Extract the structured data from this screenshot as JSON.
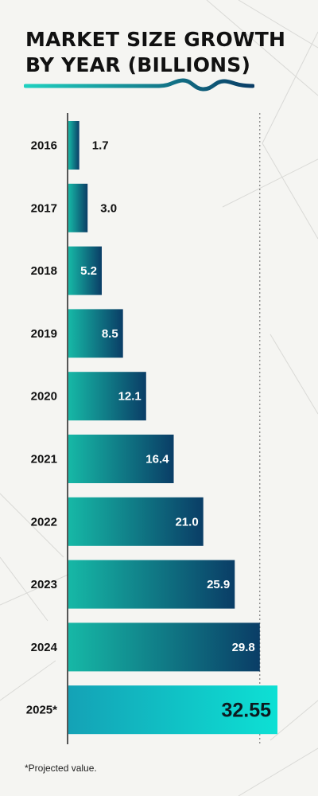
{
  "title": "MARKET SIZE GROWTH BY YEAR (BILLIONS)",
  "footnote": "*Projected value.",
  "colors": {
    "bar_start": "#16b8a6",
    "bar_end": "#0a3d66",
    "projected_start": "#14a2b6",
    "projected_end": "#0de0d4",
    "text": "#111111"
  },
  "chart_data": {
    "type": "bar",
    "orientation": "horizontal",
    "title": "MARKET SIZE GROWTH BY YEAR (BILLIONS)",
    "xlabel": "",
    "ylabel": "",
    "xlim": [
      0,
      32.55
    ],
    "grid": false,
    "categories": [
      "2016",
      "2017",
      "2018",
      "2019",
      "2020",
      "2021",
      "2022",
      "2023",
      "2024",
      "2025*"
    ],
    "values": [
      1.7,
      3.0,
      5.2,
      8.5,
      12.1,
      16.4,
      21.0,
      25.9,
      29.8,
      32.55
    ],
    "value_labels": [
      "1.7",
      "3.0",
      "5.2",
      "8.5",
      "12.1",
      "16.4",
      "21.0",
      "25.9",
      "29.8",
      "32.55"
    ],
    "projected": [
      false,
      false,
      false,
      false,
      false,
      false,
      false,
      false,
      false,
      true
    ],
    "reference_line_value": 29.8
  }
}
